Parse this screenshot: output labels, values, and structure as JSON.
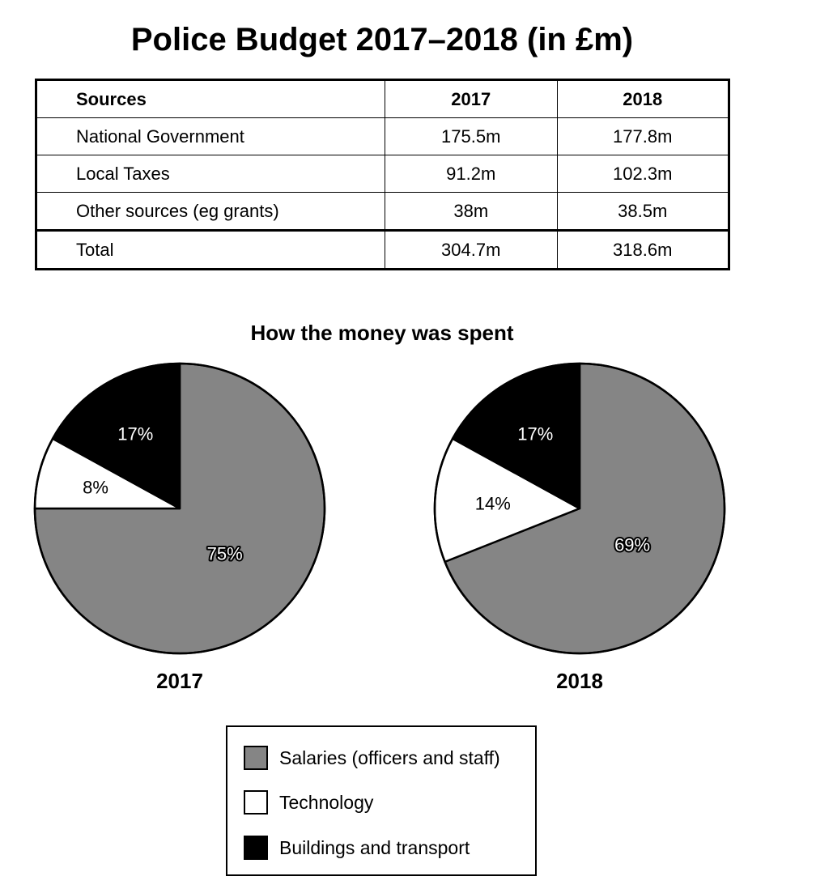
{
  "title": "Police Budget 2017–2018 (in £m)",
  "table": {
    "headers": [
      "Sources",
      "2017",
      "2018"
    ],
    "rows": [
      [
        "National Government",
        "175.5m",
        "177.8m"
      ],
      [
        "Local Taxes",
        "91.2m",
        "102.3m"
      ],
      [
        "Other sources (eg grants)",
        "38m",
        "38.5m"
      ]
    ],
    "total": [
      "Total",
      "304.7m",
      "318.6m"
    ]
  },
  "chart_data": [
    {
      "type": "table",
      "columns": [
        "Sources",
        "2017",
        "2018"
      ],
      "rows": [
        {
          "source": "National Government",
          "2017": 175.5,
          "2018": 177.8
        },
        {
          "source": "Local Taxes",
          "2017": 91.2,
          "2018": 102.3
        },
        {
          "source": "Other sources (eg grants)",
          "2017": 38,
          "2018": 38.5
        },
        {
          "source": "Total",
          "2017": 304.7,
          "2018": 318.6
        }
      ]
    },
    {
      "type": "pie",
      "title": "How the money was spent",
      "label": "2017",
      "slices": [
        {
          "name": "Salaries (officers and staff)",
          "value": 75,
          "label": "75%",
          "color": "#858585"
        },
        {
          "name": "Technology",
          "value": 8,
          "label": "8%",
          "color": "#ffffff"
        },
        {
          "name": "Buildings and transport",
          "value": 17,
          "label": "17%",
          "color": "#000000"
        }
      ]
    },
    {
      "type": "pie",
      "title": "How the money was spent",
      "label": "2018",
      "slices": [
        {
          "name": "Salaries (officers and staff)",
          "value": 69,
          "label": "69%",
          "color": "#858585"
        },
        {
          "name": "Technology",
          "value": 14,
          "label": "14%",
          "color": "#ffffff"
        },
        {
          "name": "Buildings and transport",
          "value": 17,
          "label": "17%",
          "color": "#000000"
        }
      ]
    }
  ],
  "legend": [
    {
      "label": "Salaries (officers and staff)",
      "color": "#858585"
    },
    {
      "label": "Technology",
      "color": "#ffffff"
    },
    {
      "label": "Buildings and transport",
      "color": "#000000"
    }
  ]
}
